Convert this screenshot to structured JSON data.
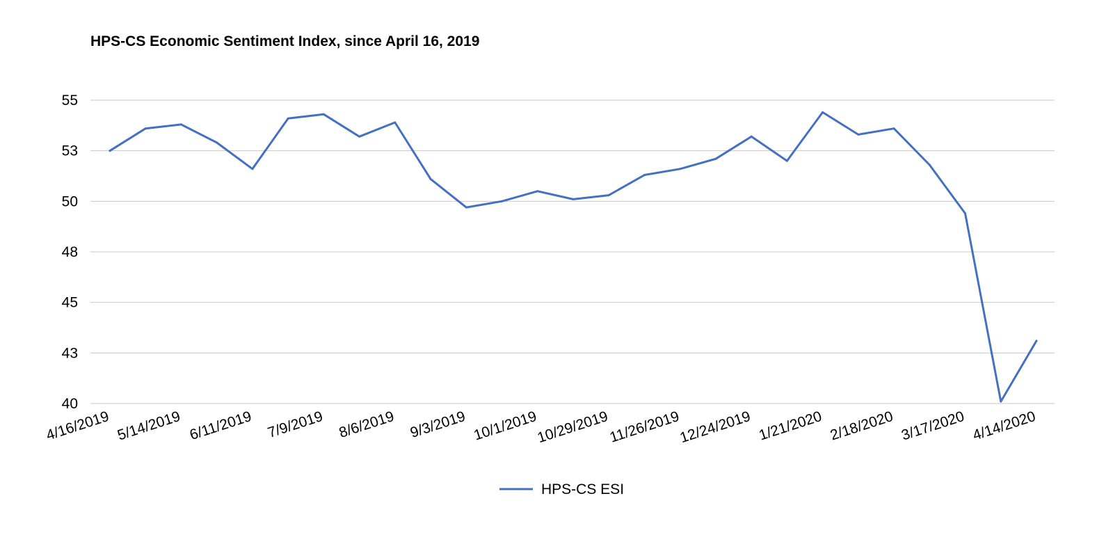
{
  "chart_data": {
    "type": "line",
    "title": "HPS-CS Economic Sentiment Index, since April 16, 2019",
    "xlabel": "",
    "ylabel": "",
    "ylim": [
      40,
      55
    ],
    "y_ticks": [
      {
        "value": 40,
        "label": "40"
      },
      {
        "value": 42.5,
        "label": "43"
      },
      {
        "value": 45,
        "label": "45"
      },
      {
        "value": 47.5,
        "label": "48"
      },
      {
        "value": 50,
        "label": "50"
      },
      {
        "value": 52.5,
        "label": "53"
      },
      {
        "value": 55,
        "label": "55"
      }
    ],
    "grid": true,
    "legend_position": "bottom-center",
    "x_labels_shown": [
      "4/16/2019",
      "5/14/2019",
      "6/11/2019",
      "7/9/2019",
      "8/6/2019",
      "9/3/2019",
      "10/1/2019",
      "10/29/2019",
      "11/26/2019",
      "12/24/2019",
      "1/21/2020",
      "2/18/2020",
      "3/17/2020",
      "4/14/2020"
    ],
    "x": [
      "4/16/2019",
      "4/30/2019",
      "5/14/2019",
      "5/28/2019",
      "6/11/2019",
      "6/25/2019",
      "7/9/2019",
      "7/23/2019",
      "8/6/2019",
      "8/20/2019",
      "9/3/2019",
      "9/17/2019",
      "10/1/2019",
      "10/15/2019",
      "10/29/2019",
      "11/12/2019",
      "11/26/2019",
      "12/10/2019",
      "12/24/2019",
      "1/7/2020",
      "1/21/2020",
      "2/4/2020",
      "2/18/2020",
      "3/3/2020",
      "3/17/2020",
      "3/31/2020",
      "4/14/2020"
    ],
    "series": [
      {
        "name": "HPS-CS ESI",
        "color": "#4470c4",
        "values": [
          52.5,
          53.6,
          53.8,
          52.9,
          51.6,
          54.1,
          54.3,
          53.2,
          53.9,
          51.1,
          49.7,
          50.0,
          50.5,
          50.1,
          50.3,
          51.3,
          51.6,
          52.1,
          53.2,
          52.0,
          54.4,
          53.3,
          53.6,
          51.8,
          49.4,
          40.1,
          43.1
        ]
      }
    ]
  },
  "legend": {
    "label": "HPS-CS ESI"
  }
}
